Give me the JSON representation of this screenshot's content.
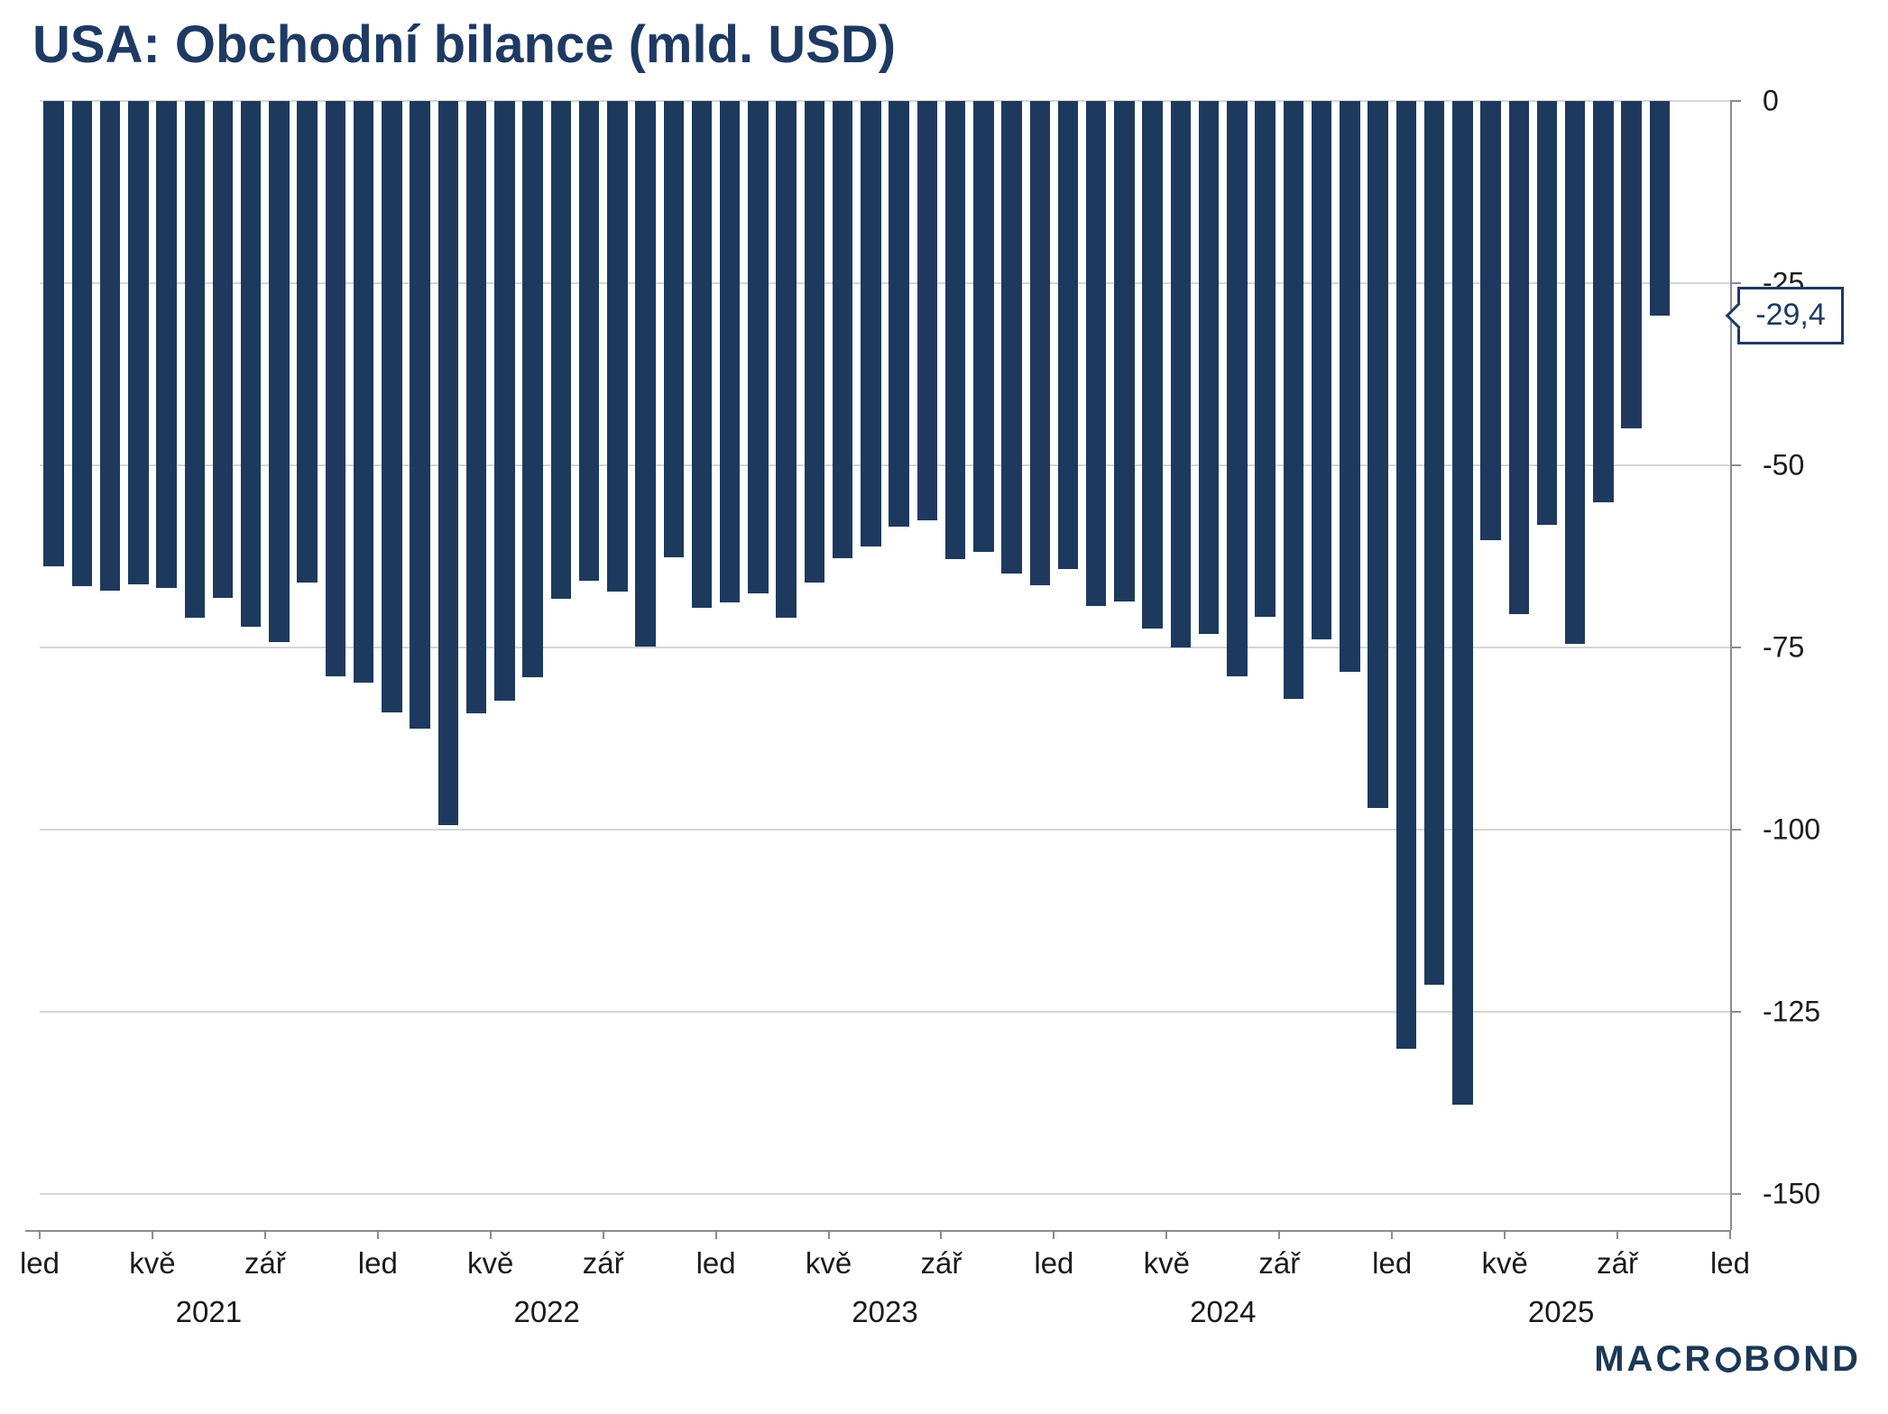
{
  "title": "USA: Obchodní bilance (mld. USD)",
  "chart_data": {
    "type": "bar",
    "title": "USA: Obchodní bilance (mld. USD)",
    "unit": "mld. USD",
    "bar_color": "#1d3a5e",
    "grid": true,
    "ylim": [
      -155,
      0
    ],
    "y_ticks": [
      0,
      -25,
      -50,
      -75,
      -100,
      -125,
      -150
    ],
    "y_tick_labels": [
      "0",
      "-25",
      "-50",
      "-75",
      "-100",
      "-125",
      "-150"
    ],
    "x_tick_labels": [
      {
        "label": "led",
        "month": 0
      },
      {
        "label": "kvě",
        "month": 4
      },
      {
        "label": "zář",
        "month": 8
      },
      {
        "label": "led",
        "month": 12
      },
      {
        "label": "kvě",
        "month": 16
      },
      {
        "label": "zář",
        "month": 20
      },
      {
        "label": "led",
        "month": 24
      },
      {
        "label": "kvě",
        "month": 28
      },
      {
        "label": "zář",
        "month": 32
      },
      {
        "label": "led",
        "month": 36
      },
      {
        "label": "kvě",
        "month": 40
      },
      {
        "label": "zář",
        "month": 44
      },
      {
        "label": "led",
        "month": 48
      },
      {
        "label": "kvě",
        "month": 52
      },
      {
        "label": "zář",
        "month": 56
      },
      {
        "label": "led",
        "month": 60
      }
    ],
    "year_labels": [
      {
        "label": "2021",
        "month": 6
      },
      {
        "label": "2022",
        "month": 18
      },
      {
        "label": "2023",
        "month": 30
      },
      {
        "label": "2024",
        "month": 42
      },
      {
        "label": "2025",
        "month": 54
      }
    ],
    "months": [
      "2021-01",
      "2021-02",
      "2021-03",
      "2021-04",
      "2021-05",
      "2021-06",
      "2021-07",
      "2021-08",
      "2021-09",
      "2021-10",
      "2021-11",
      "2021-12",
      "2022-01",
      "2022-02",
      "2022-03",
      "2022-04",
      "2022-05",
      "2022-06",
      "2022-07",
      "2022-08",
      "2022-09",
      "2022-10",
      "2022-11",
      "2022-12",
      "2023-01",
      "2023-02",
      "2023-03",
      "2023-04",
      "2023-05",
      "2023-06",
      "2023-07",
      "2023-08",
      "2023-09",
      "2023-10",
      "2023-11",
      "2023-12",
      "2024-01",
      "2024-02",
      "2024-03",
      "2024-04",
      "2024-05",
      "2024-06",
      "2024-07",
      "2024-08",
      "2024-09",
      "2024-10",
      "2024-11",
      "2024-12",
      "2025-01",
      "2025-02",
      "2025-03",
      "2025-04",
      "2025-05",
      "2025-06",
      "2025-07",
      "2025-08",
      "2025-09",
      "2025-10"
    ],
    "values": [
      -63.8,
      -66.6,
      -67.2,
      -66.3,
      -66.8,
      -70.9,
      -68.2,
      -72.1,
      -74.3,
      -66.1,
      -78.9,
      -79.8,
      -83.9,
      -86.1,
      -99.4,
      -84.0,
      -82.3,
      -79.1,
      -68.3,
      -65.9,
      -67.3,
      -74.9,
      -62.6,
      -69.5,
      -68.8,
      -67.6,
      -70.9,
      -66.1,
      -62.8,
      -61.2,
      -58.4,
      -57.6,
      -62.9,
      -61.9,
      -64.9,
      -66.4,
      -64.2,
      -69.3,
      -68.7,
      -72.4,
      -75.0,
      -73.1,
      -78.9,
      -70.8,
      -82.0,
      -73.9,
      -78.3,
      -97.0,
      -130.1,
      -121.3,
      -137.7,
      -60.3,
      -70.4,
      -58.2,
      -74.5,
      -55.1,
      -44.9,
      -29.4
    ],
    "callout": {
      "label": "-29,4",
      "value": -29.4
    }
  },
  "logo": {
    "pre": "MACR",
    "post": "BOND"
  }
}
